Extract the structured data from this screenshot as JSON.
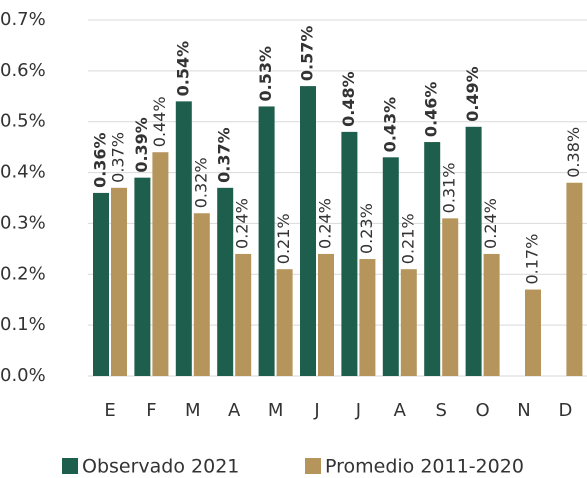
{
  "chart_data": {
    "type": "bar",
    "categories": [
      "E",
      "F",
      "M",
      "A",
      "M",
      "J",
      "J",
      "A",
      "S",
      "O",
      "N",
      "D"
    ],
    "series": [
      {
        "name": "Observado 2021",
        "color": "#1e5e4c",
        "values": [
          0.36,
          0.39,
          0.54,
          0.37,
          0.53,
          0.57,
          0.48,
          0.43,
          0.46,
          0.49,
          null,
          null
        ],
        "value_labels": [
          "0.36%",
          "0.39%",
          "0.54%",
          "0.37%",
          "0.53%",
          "0.57%",
          "0.48%",
          "0.43%",
          "0.46%",
          "0.49%",
          null,
          null
        ]
      },
      {
        "name": "Promedio 2011-2020",
        "color": "#b5955c",
        "values": [
          0.37,
          0.44,
          0.32,
          0.24,
          0.21,
          0.24,
          0.23,
          0.21,
          0.31,
          0.24,
          0.17,
          0.38
        ],
        "value_labels": [
          "0.37%",
          "0.44%",
          "0.32%",
          "0.24%",
          "0.21%",
          "0.24%",
          "0.23%",
          "0.21%",
          "0.31%",
          "0.24%",
          "0.17%",
          "0.38%"
        ]
      }
    ],
    "ylim": [
      0,
      0.7
    ],
    "yticks": [
      {
        "value": 0,
        "label": "0.0%"
      },
      {
        "value": 0.1,
        "label": "0.1%"
      },
      {
        "value": 0.2,
        "label": "0.2%"
      },
      {
        "value": 0.3,
        "label": "0.3%"
      },
      {
        "value": 0.4,
        "label": "0.4%"
      },
      {
        "value": 0.5,
        "label": "0.5%"
      },
      {
        "value": 0.6,
        "label": "0.6%"
      },
      {
        "value": 0.7,
        "label": "0.7%"
      }
    ],
    "grid": true,
    "legend": "bottom"
  }
}
